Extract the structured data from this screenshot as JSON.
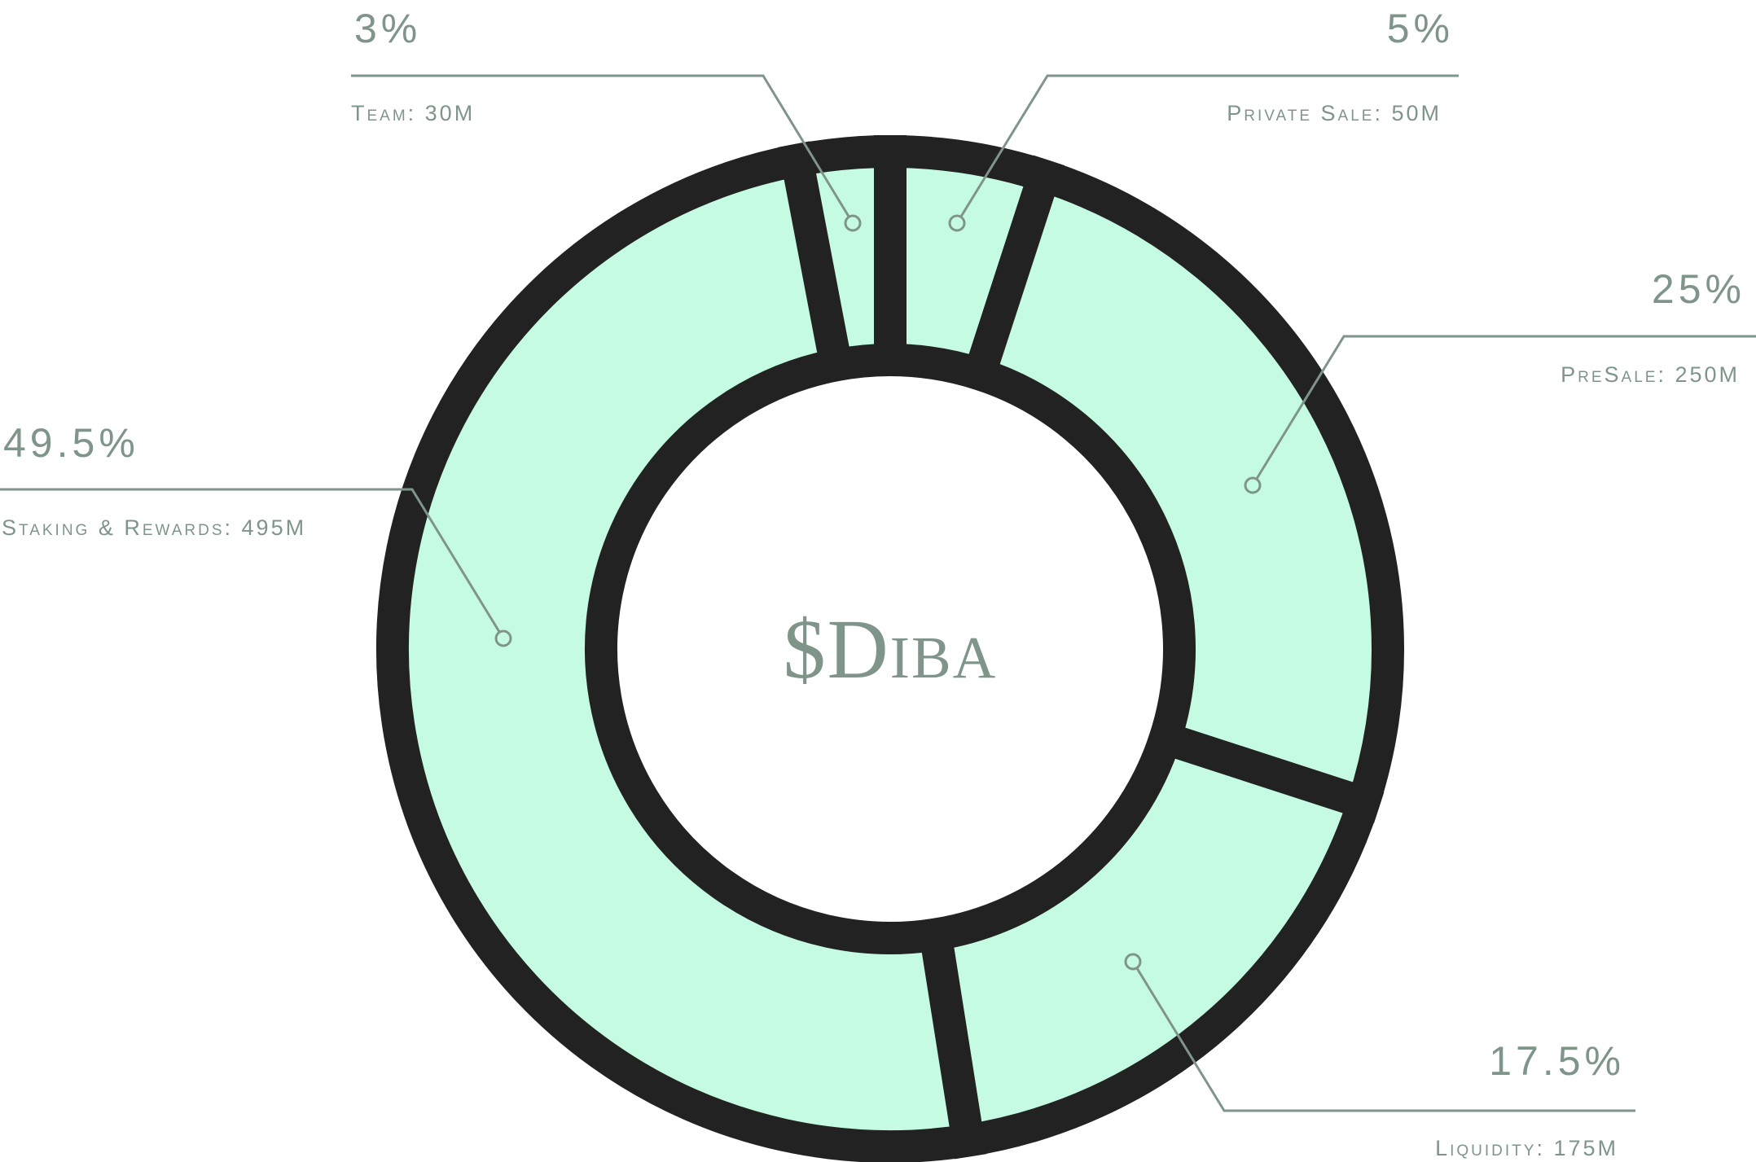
{
  "chart_data": {
    "type": "pie",
    "center_label": "$Diba",
    "slices": [
      {
        "name": "Team",
        "label": "Team: 30M",
        "value": 30,
        "percent_label": "3%"
      },
      {
        "name": "Private Sale",
        "label": "Private Sale: 50M",
        "value": 50,
        "percent_label": "5%"
      },
      {
        "name": "PreSale",
        "label": "PreSale: 250M",
        "value": 250,
        "percent_label": "25%"
      },
      {
        "name": "Liquidity",
        "label": "Liquidity: 175M",
        "value": 175,
        "percent_label": "17.5%"
      },
      {
        "name": "Staking & Rewards",
        "label": "Staking & Rewards: 495M",
        "value": 495,
        "percent_label": "49.5%"
      }
    ]
  },
  "colors": {
    "fill": "#c5fbe3",
    "stroke": "#222222",
    "text": "#7f958a",
    "background": "#ffffff"
  }
}
